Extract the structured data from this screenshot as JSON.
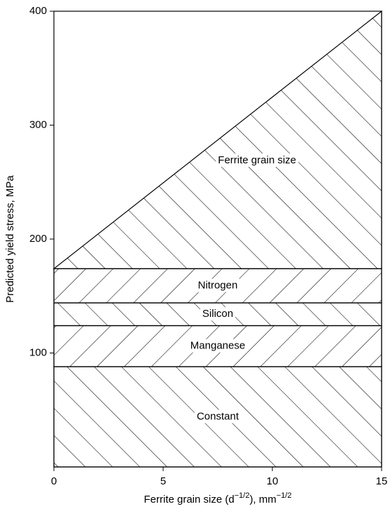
{
  "chart_data": {
    "type": "area",
    "stacked": true,
    "hatched": true,
    "xlabel": [
      "Ferrite grain size (d",
      "−1/2",
      "), mm",
      "−1/2"
    ],
    "ylabel": "Predicted yield stress, MPa",
    "x": [
      0,
      15
    ],
    "series": [
      {
        "name": "Constant",
        "color": "#000000",
        "values": [
          88,
          88
        ]
      },
      {
        "name": "Manganese",
        "color": "#000000",
        "values": [
          36,
          36
        ]
      },
      {
        "name": "Silicon",
        "color": "#000000",
        "values": [
          20,
          20
        ]
      },
      {
        "name": "Nitrogen",
        "color": "#000000",
        "values": [
          30,
          30
        ]
      },
      {
        "name": "Ferrite grain size",
        "color": "#000000",
        "values": [
          0,
          226
        ]
      }
    ],
    "xlim": [
      0,
      15
    ],
    "xticks": [
      0,
      5,
      10,
      15
    ],
    "ylim": [
      0,
      400
    ],
    "yticks": [
      100,
      200,
      300,
      400
    ],
    "grid": false
  }
}
